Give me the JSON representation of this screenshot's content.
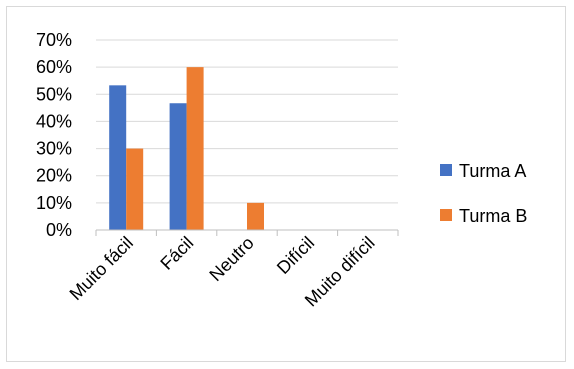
{
  "chart_data": {
    "type": "bar",
    "categories": [
      "Muito fácil",
      "Fácil",
      "Neutro",
      "Difícil",
      "Muito difícil"
    ],
    "series": [
      {
        "name": "Turma A",
        "values": [
          53.3,
          46.7,
          0,
          0,
          0
        ],
        "color": "#4472C4"
      },
      {
        "name": "Turma B",
        "values": [
          30,
          60,
          10,
          0,
          0
        ],
        "color": "#ED7D31"
      }
    ],
    "y_ticks": [
      "0%",
      "10%",
      "20%",
      "30%",
      "40%",
      "50%",
      "60%",
      "70%"
    ],
    "ylim": [
      0,
      70
    ],
    "grid": true,
    "legend_position": "right"
  }
}
